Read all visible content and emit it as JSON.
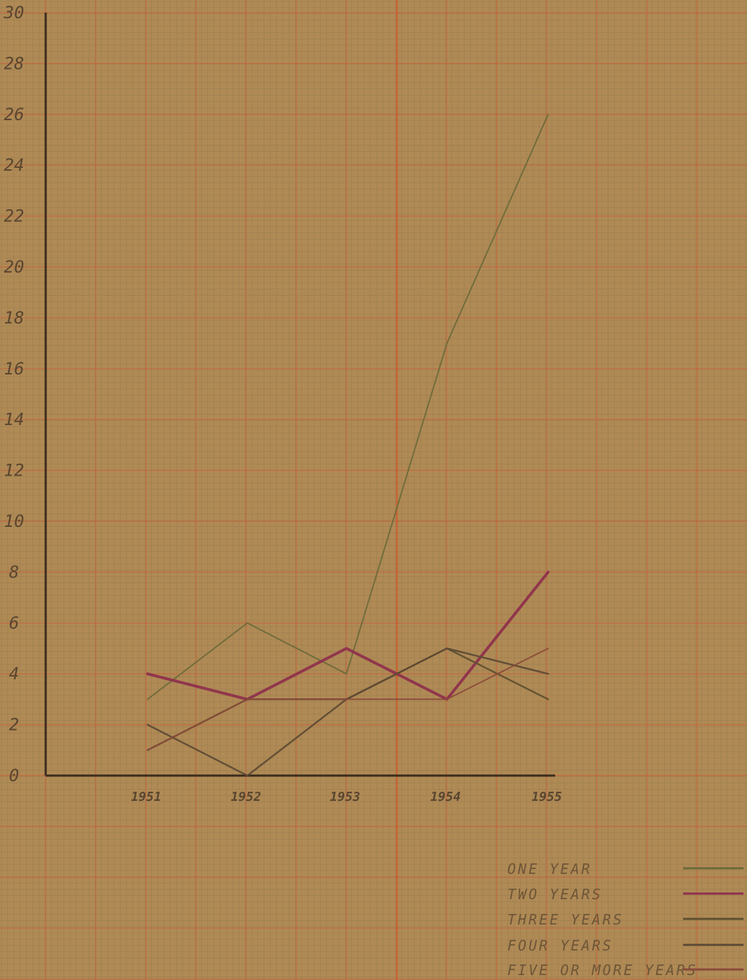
{
  "chart_data": {
    "type": "line",
    "title": "",
    "xlabel": "",
    "ylabel": "",
    "x": [
      "1951",
      "1952",
      "1953",
      "1954",
      "1955"
    ],
    "yticks": [
      "0",
      "2",
      "4",
      "6",
      "8",
      "10",
      "12",
      "14",
      "16",
      "18",
      "20",
      "22",
      "24",
      "26",
      "28",
      "30"
    ],
    "ylim": [
      0,
      30
    ],
    "grid": true,
    "legend_position": "bottom-right",
    "series": [
      {
        "name": "ONE YEAR",
        "values": [
          3,
          6,
          4,
          17,
          26
        ],
        "color": "#6b6a3a"
      },
      {
        "name": "TWO YEARS",
        "values": [
          4,
          3,
          5,
          3,
          8
        ],
        "color": "#8e2f4c"
      },
      {
        "name": "THREE YEARS",
        "values": [
          1,
          3,
          3,
          5,
          3
        ],
        "color": "#5e5030"
      },
      {
        "name": "FOUR YEARS",
        "values": [
          2,
          0,
          3,
          5,
          4
        ],
        "color": "#5d4a34"
      },
      {
        "name": "FIVE OR MORE YEARS",
        "values": [
          1,
          3,
          3,
          3,
          5
        ],
        "color": "#8a4a3a"
      }
    ],
    "colors": {
      "paper": "#b08a55",
      "minor_grid": "#9e8050",
      "major_grid": "#c5633a",
      "axis": "#3a2c1c"
    }
  }
}
